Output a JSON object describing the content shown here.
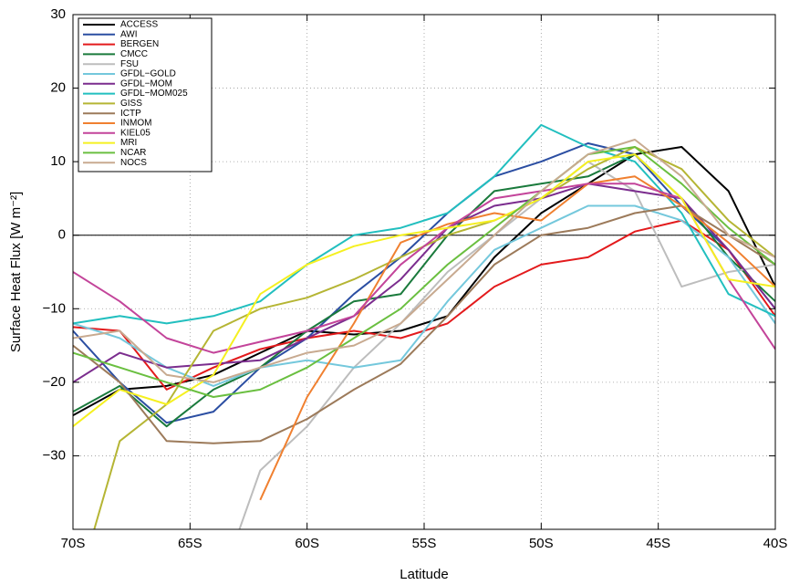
{
  "chart_data": {
    "type": "line",
    "xlabel": "Latitude",
    "ylabel": "Surface Heat Flux [W m⁻²]",
    "x": [
      -70,
      -68,
      -66,
      -64,
      -62,
      -60,
      -58,
      -56,
      -54,
      -52,
      -50,
      -48,
      -46,
      -44,
      -42,
      -40
    ],
    "xlim": [
      -70,
      -40
    ],
    "xticks": [
      {
        "value": -70,
        "label": "70S"
      },
      {
        "value": -65,
        "label": "65S"
      },
      {
        "value": -60,
        "label": "60S"
      },
      {
        "value": -55,
        "label": "55S"
      },
      {
        "value": -50,
        "label": "50S"
      },
      {
        "value": -45,
        "label": "45S"
      },
      {
        "value": -40,
        "label": "40S"
      }
    ],
    "ylim": [
      -40,
      30
    ],
    "yticks": [
      {
        "value": -30,
        "label": "−30"
      },
      {
        "value": -20,
        "label": "−20"
      },
      {
        "value": -10,
        "label": "−10"
      },
      0,
      10,
      20,
      30
    ],
    "grid": true,
    "legend": "upper left",
    "series": [
      {
        "name": "ACCESS",
        "color": "#000000",
        "values": [
          -24.5,
          -21,
          -20.5,
          -19,
          -16,
          -13,
          -13.5,
          -13,
          -11,
          -3,
          3,
          7,
          11,
          12,
          6,
          -7
        ]
      },
      {
        "name": "AWI",
        "color": "#2b4ea2",
        "values": [
          -13,
          -20,
          -25.5,
          -24,
          -18,
          -14,
          -8,
          -3,
          3,
          8,
          10,
          12.5,
          11,
          4,
          -2,
          -10
        ]
      },
      {
        "name": "BERGEN",
        "color": "#e31a1c",
        "values": [
          -12.5,
          -13,
          -21,
          -18,
          -15.5,
          -14,
          -13,
          -14,
          -12,
          -7,
          -4,
          -3,
          0.5,
          2,
          -2,
          -11
        ]
      },
      {
        "name": "CMCC",
        "color": "#1a7a3c",
        "values": [
          -24,
          -20.5,
          -26,
          -21,
          -18,
          -13,
          -9,
          -8,
          0,
          6,
          7,
          8,
          11,
          5,
          -3,
          -9
        ]
      },
      {
        "name": "FSU",
        "color": "#bdbdbd",
        "values": [
          null,
          null,
          null,
          -50,
          -32,
          -26,
          -18,
          -12,
          -5,
          0,
          5,
          10,
          6,
          -7,
          -5,
          -4
        ]
      },
      {
        "name": "GFDL−GOLD",
        "color": "#74c8dc",
        "values": [
          -12,
          -14,
          -18,
          -20.5,
          -18,
          -17,
          -18,
          -17,
          -9,
          -2,
          1,
          4,
          4,
          2,
          -3,
          -12
        ]
      },
      {
        "name": "GFDL−MOM",
        "color": "#7b2d8e",
        "values": [
          -20,
          -16,
          -18,
          -17.5,
          -17,
          -14,
          -11,
          -6,
          1,
          4,
          5,
          7,
          6,
          5,
          -2,
          -10
        ]
      },
      {
        "name": "GFDL−MOM025",
        "color": "#22bfbf",
        "values": [
          -12,
          -11,
          -12,
          -11,
          -9,
          -4,
          0,
          1,
          3,
          8,
          15,
          12,
          10,
          3,
          -8,
          -11
        ]
      },
      {
        "name": "GISS",
        "color": "#b5b534",
        "values": [
          -50,
          -28,
          -23,
          -13,
          -10,
          -8.5,
          -6,
          -3,
          0,
          2,
          5,
          9,
          12,
          9,
          2,
          -3
        ]
      },
      {
        "name": "ICTP",
        "color": "#9c7a5a",
        "values": [
          -15,
          -20,
          -28,
          -28.3,
          -28,
          -25,
          -21,
          -17.5,
          -11,
          -4,
          0,
          1,
          3,
          4,
          0,
          -4
        ]
      },
      {
        "name": "INMOM",
        "color": "#f08030",
        "values": [
          null,
          null,
          null,
          null,
          -36,
          -22,
          -12,
          -1,
          1.5,
          3,
          2,
          7,
          8,
          4,
          -1,
          -7
        ]
      },
      {
        "name": "KIEL05",
        "color": "#c3449a",
        "values": [
          -5,
          -9,
          -14,
          -16,
          -14.5,
          -13,
          -11,
          -4,
          1,
          5,
          6,
          7,
          7,
          5,
          -6,
          -15.5
        ]
      },
      {
        "name": "MRI",
        "color": "#f5f020",
        "values": [
          -26,
          -21,
          -23,
          -19,
          -8,
          -4,
          -1.5,
          0,
          1,
          2,
          5,
          10,
          11,
          5,
          -6,
          -7
        ]
      },
      {
        "name": "NCAR",
        "color": "#6abf40",
        "values": [
          -16,
          -18,
          -20,
          -22,
          -21,
          -18,
          -14,
          -10,
          -4,
          1,
          6,
          11,
          12,
          7,
          1,
          -4
        ]
      },
      {
        "name": "NOCS",
        "color": "#c8aa90",
        "values": [
          -14,
          -13,
          -19,
          -20,
          -18,
          -16,
          -15,
          -12,
          -6,
          0,
          6,
          11,
          13,
          8,
          0,
          -3
        ]
      }
    ]
  }
}
